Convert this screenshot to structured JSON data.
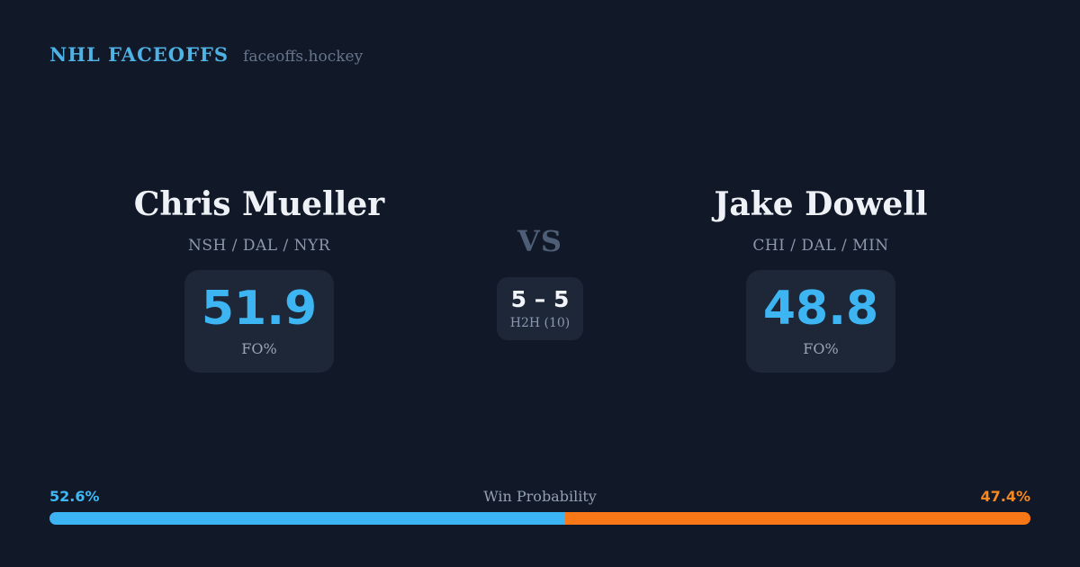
{
  "header": {
    "brand": "NHL FACEOFFS",
    "site": "faceoffs.hockey"
  },
  "matchup": {
    "players": [
      {
        "name": "Chris Mueller",
        "teams": "NSH / DAL / NYR",
        "fo_pct": "51.9",
        "fo_label": "FO%"
      },
      {
        "name": "Jake Dowell",
        "teams": "CHI / DAL / MIN",
        "fo_pct": "48.8",
        "fo_label": "FO%"
      }
    ],
    "vs_label": "VS",
    "h2h": {
      "score": "5 – 5",
      "label": "H2H (10)"
    }
  },
  "win_probability": {
    "title": "Win Probability",
    "left_pct_text": "52.6%",
    "right_pct_text": "47.4%",
    "left_value": 52.6,
    "right_value": 47.4,
    "left_color": "#3cb4f4",
    "right_color": "#f97716"
  },
  "colors": {
    "background": "#111827",
    "box_background": "#1d2737",
    "accent_blue": "#3db5f3",
    "accent_orange": "#f97716",
    "brand_blue": "#4fb2e4",
    "player_name": "#eef2f7",
    "muted_text": "#8b98ad"
  }
}
